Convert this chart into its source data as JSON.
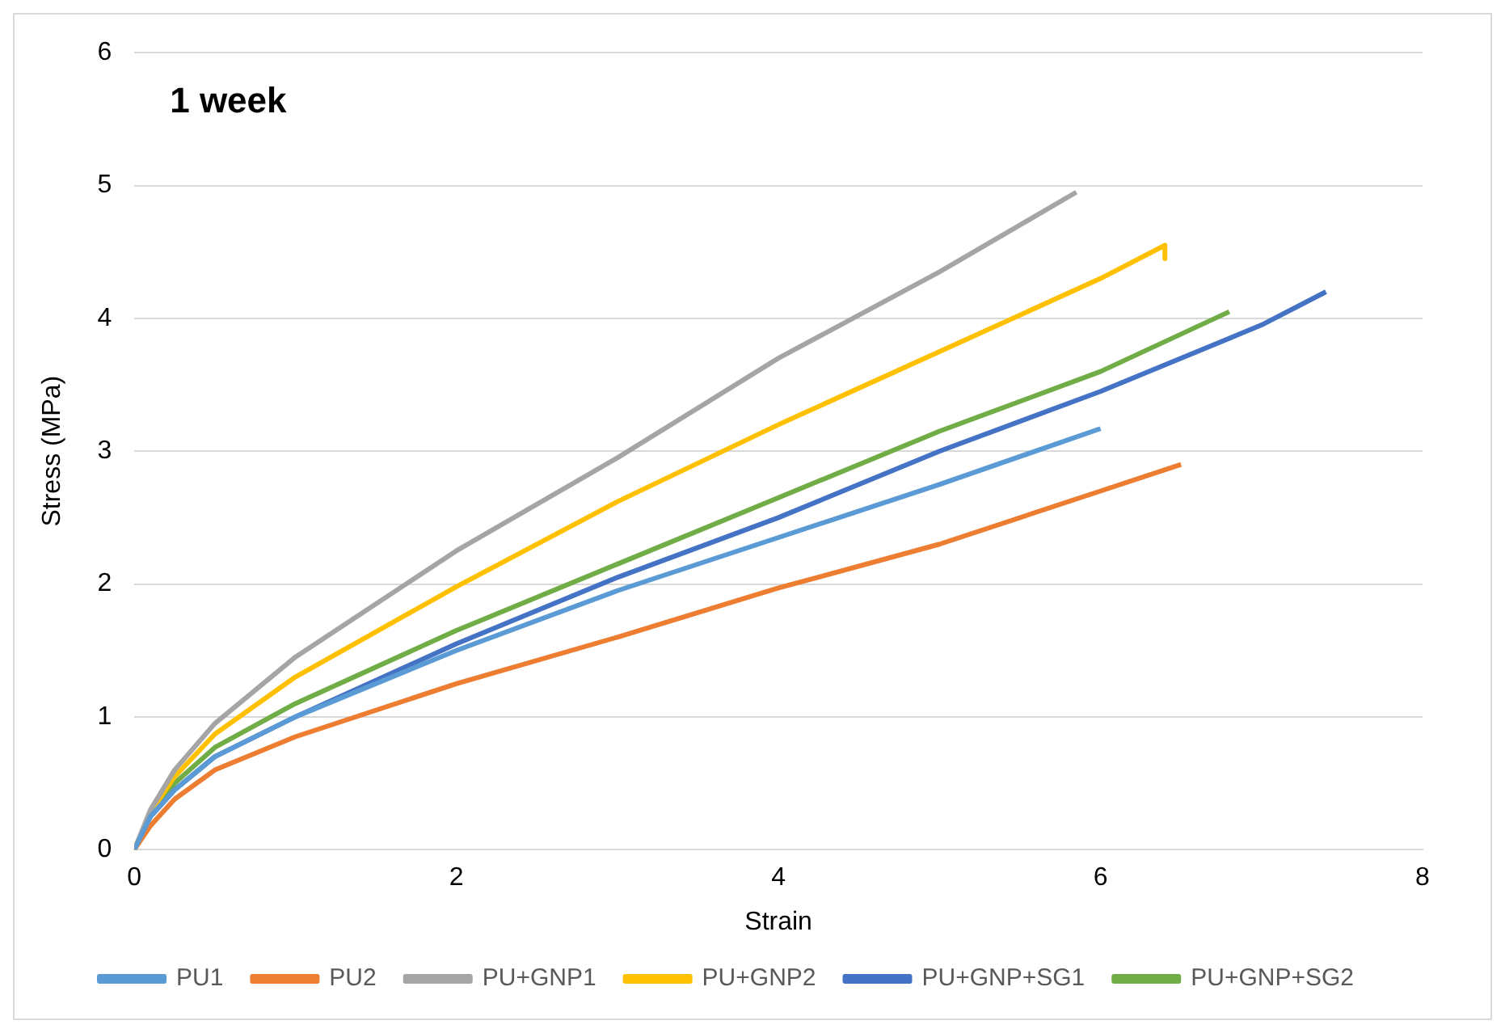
{
  "chart_data": {
    "type": "line",
    "xlabel": "Strain",
    "ylabel": "Stress (MPa)",
    "annotations": [
      "1 week"
    ],
    "xlim": [
      0,
      8
    ],
    "xticks": [
      0,
      2,
      4,
      6,
      8
    ],
    "ylim": [
      0,
      6
    ],
    "yticks": [
      0,
      1,
      2,
      3,
      4,
      5,
      6
    ],
    "grid": "y",
    "legend": "bottom",
    "marker": "none",
    "series": [
      {
        "name": "PU1",
        "color": "#5b9bd5",
        "x": [
          0,
          0.1,
          0.25,
          0.5,
          1,
          2,
          3,
          4,
          5,
          6
        ],
        "values": [
          0,
          0.25,
          0.45,
          0.7,
          1.0,
          1.5,
          1.95,
          2.35,
          2.75,
          3.17
        ]
      },
      {
        "name": "PU2",
        "color": "#ed7d31",
        "x": [
          0,
          0.1,
          0.25,
          0.5,
          1,
          2,
          3,
          4,
          5,
          6,
          6.5
        ],
        "values": [
          0,
          0.18,
          0.38,
          0.6,
          0.85,
          1.25,
          1.6,
          1.97,
          2.3,
          2.7,
          2.9
        ]
      },
      {
        "name": "PU+GNP1",
        "color": "#a5a5a5",
        "x": [
          0,
          0.1,
          0.25,
          0.5,
          1,
          2,
          3,
          4,
          5,
          5.85
        ],
        "values": [
          0,
          0.3,
          0.6,
          0.95,
          1.45,
          2.25,
          2.95,
          3.7,
          4.35,
          4.95
        ]
      },
      {
        "name": "PU+GNP2",
        "color": "#ffc000",
        "x": [
          0,
          0.1,
          0.25,
          0.5,
          1,
          2,
          3,
          4,
          5,
          6,
          6.4,
          6.4
        ],
        "values": [
          0,
          0.28,
          0.55,
          0.87,
          1.3,
          1.98,
          2.62,
          3.2,
          3.75,
          4.3,
          4.55,
          4.45
        ]
      },
      {
        "name": "PU+GNP+SG1",
        "color": "#4472c4",
        "x": [
          0,
          0.1,
          0.25,
          0.5,
          1,
          2,
          3,
          4,
          5,
          6,
          7,
          7.4
        ],
        "values": [
          0,
          0.25,
          0.45,
          0.7,
          1.0,
          1.55,
          2.05,
          2.5,
          3.0,
          3.45,
          3.95,
          4.2
        ]
      },
      {
        "name": "PU+GNP+SG2",
        "color": "#70ad47",
        "x": [
          0,
          0.1,
          0.25,
          0.5,
          1,
          2,
          3,
          4,
          5,
          6,
          6.8
        ],
        "values": [
          0,
          0.27,
          0.5,
          0.77,
          1.1,
          1.65,
          2.15,
          2.65,
          3.15,
          3.6,
          4.05
        ]
      }
    ]
  }
}
